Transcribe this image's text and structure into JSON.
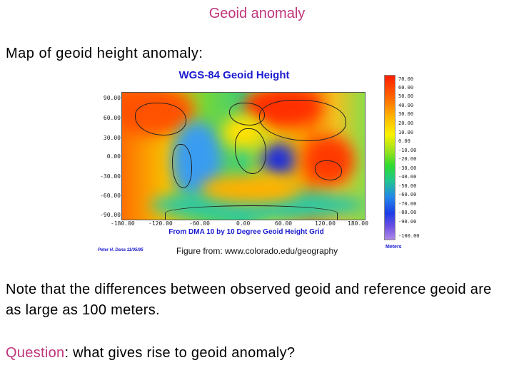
{
  "slide": {
    "title": "Geoid anomaly",
    "subtitle": "Map of geoid height anomaly:",
    "note": "Note that the differences between observed geoid and reference geoid are as large as 100 meters.",
    "question_lead": "Question",
    "question_rest": ": what gives rise to geoid anomaly?",
    "accent_color": "#c0357a"
  },
  "figure": {
    "title": "WGS-84 Geoid Height",
    "source": "From DMA 10 by 10 Degree Geoid Height Grid",
    "signature": "Peter H. Dana 11/05/95",
    "credit": "Figure from: www.colorado.edu/geography",
    "y_labels": [
      "90.00",
      "60.00",
      "30.00",
      "0.00",
      "-30.00",
      "-60.00",
      "-90.00"
    ],
    "x_labels": [
      "-180.00",
      "-120.00",
      "-60.00",
      "0.00",
      "60.00",
      "120.00",
      "180.00"
    ],
    "colorbar_labels": [
      "70.00",
      "60.00",
      "50.00",
      "40.00",
      "30.00",
      "20.00",
      "10.00",
      "0.00",
      "-10.00",
      "-20.00",
      "-30.00",
      "-40.00",
      "-50.00",
      "-60.00",
      "-70.00",
      "-80.00",
      "-90.00",
      "-100.00"
    ],
    "colorbar_unit": "Meters"
  }
}
